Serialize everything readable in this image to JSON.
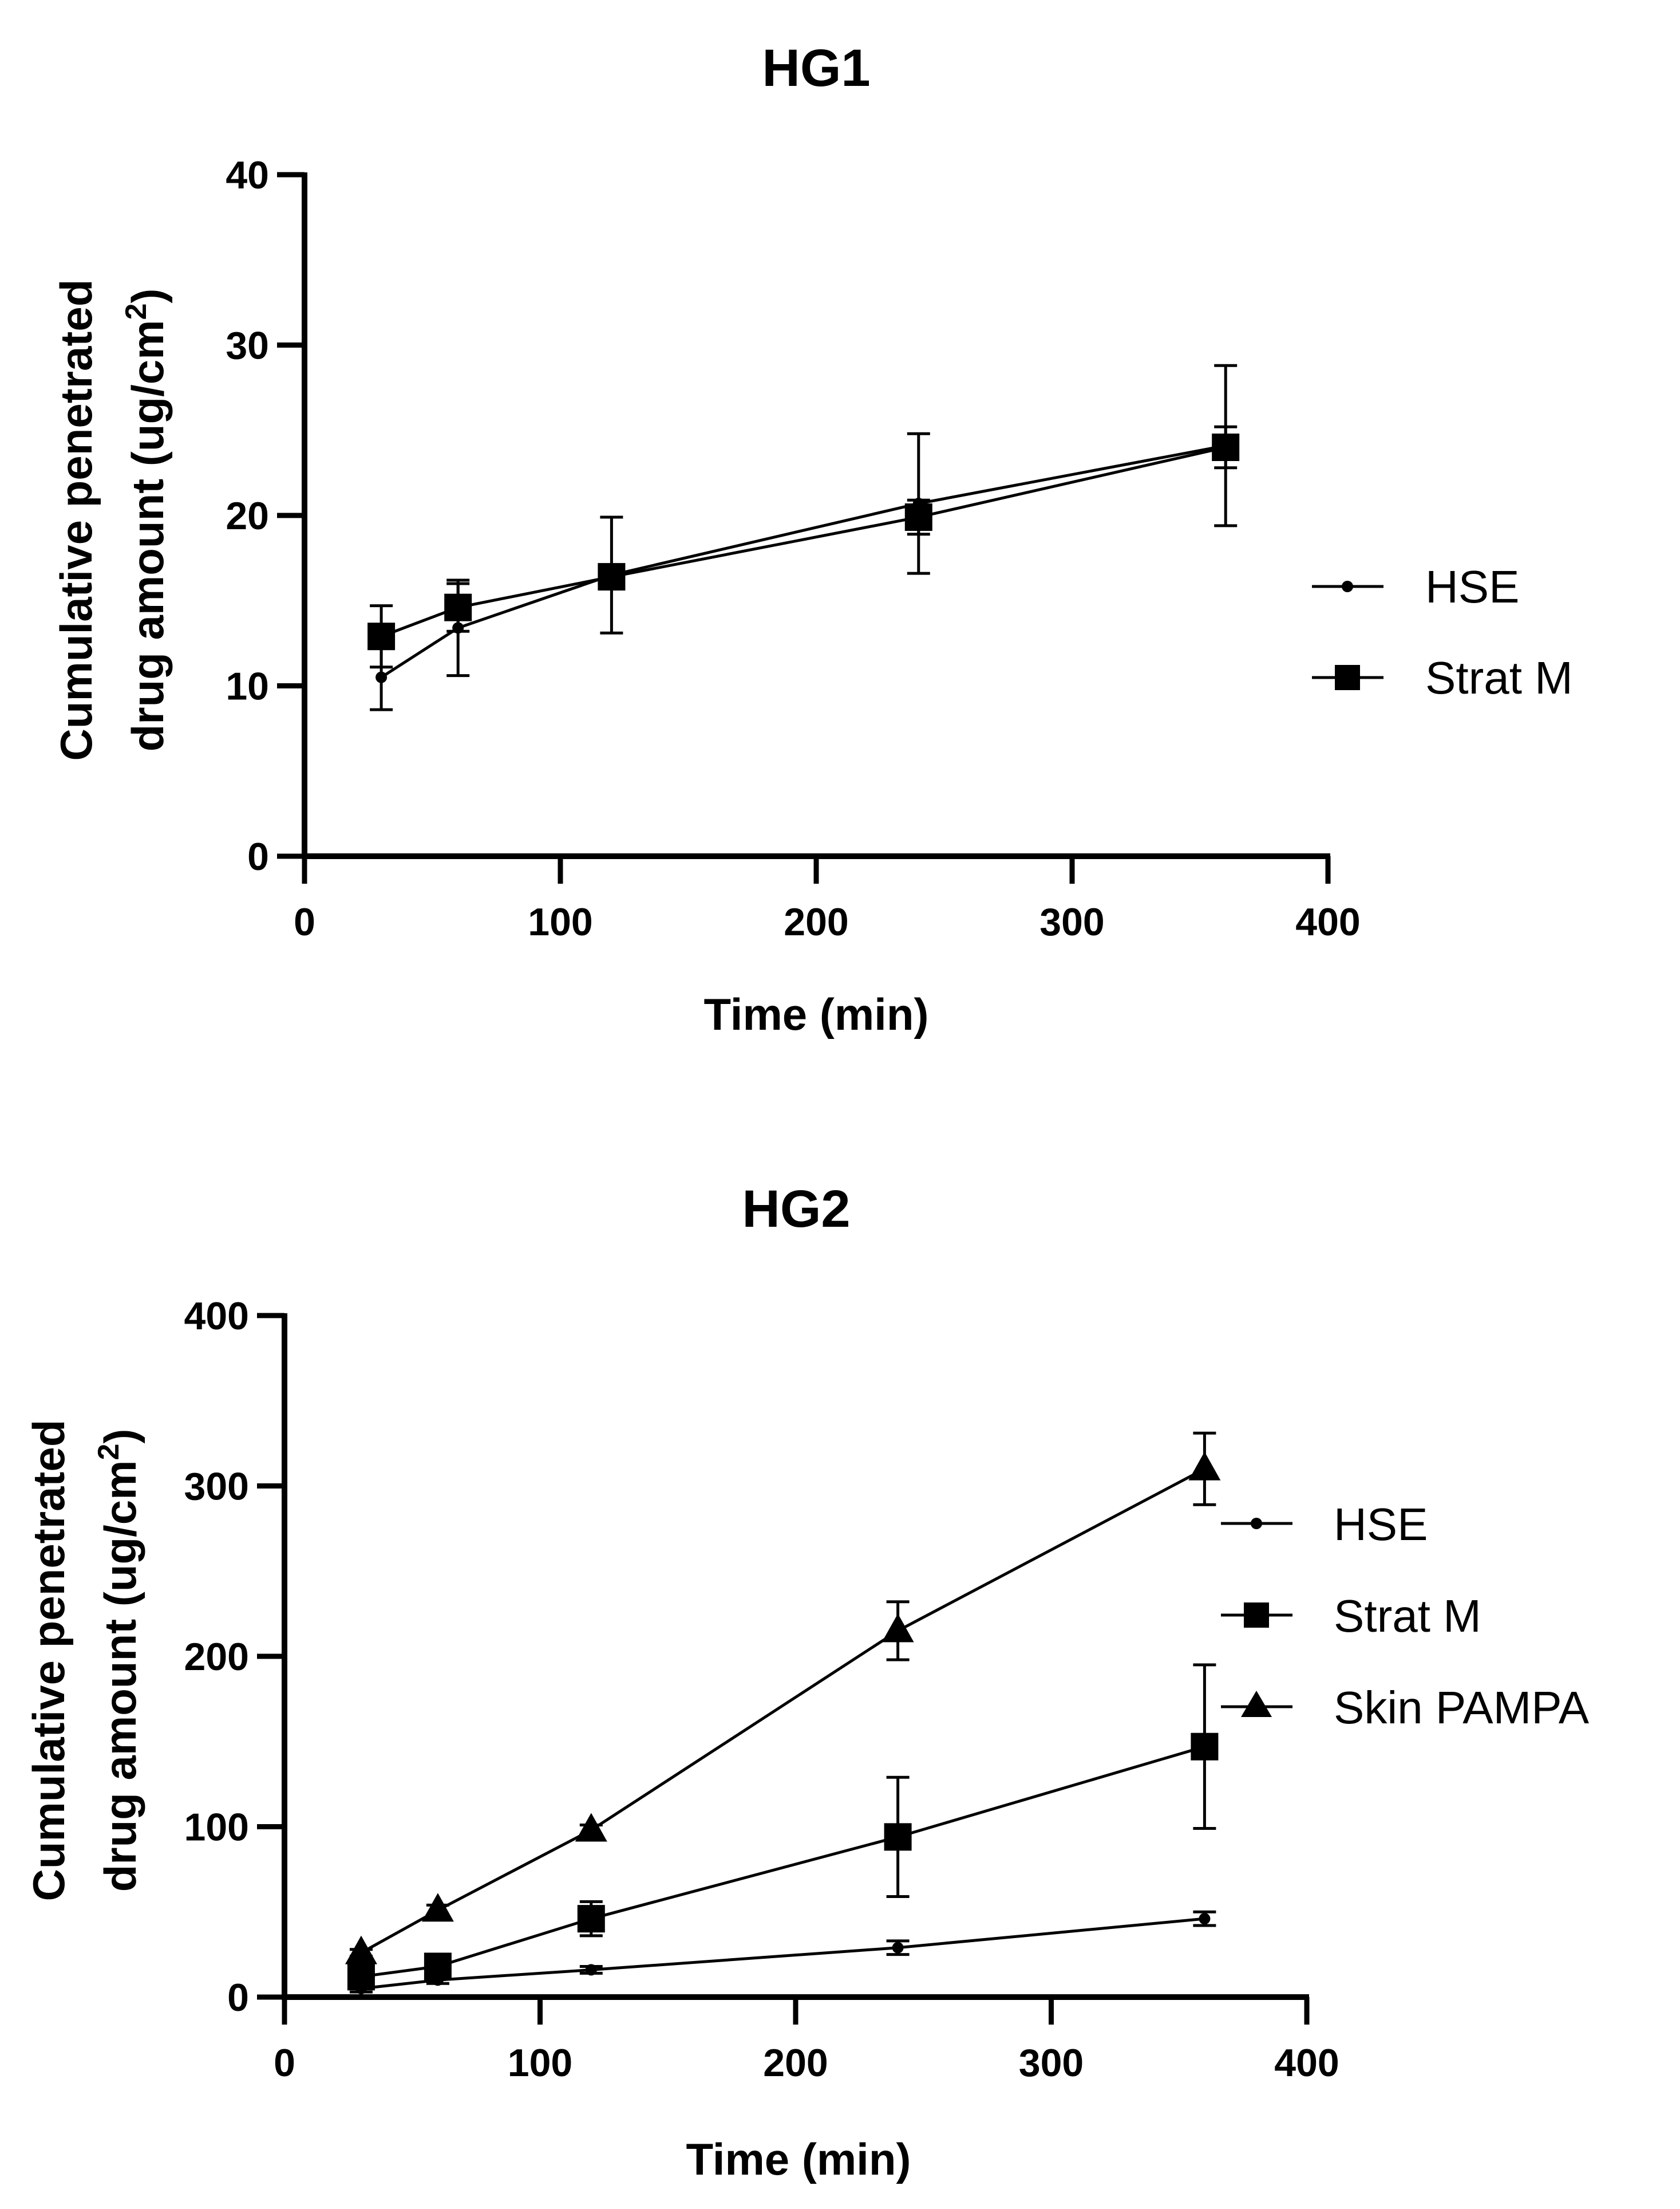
{
  "chart_data": [
    {
      "type": "line",
      "title": "HG1",
      "xlabel": "Time (min)",
      "ylabel_line1": "Cumulative penetrated",
      "ylabel_line2": "drug amount (ug/cm",
      "ylabel_sup": "2",
      "ylabel_close": ")",
      "xlim": [
        0,
        400
      ],
      "ylim": [
        0,
        40
      ],
      "xticks": [
        0,
        100,
        200,
        300,
        400
      ],
      "yticks": [
        0,
        10,
        20,
        30,
        40
      ],
      "xtick_labels": [
        "0",
        "100",
        "200",
        "300",
        "400"
      ],
      "ytick_labels": [
        "0",
        "10",
        "20",
        "30",
        "40"
      ],
      "legend_position": "right",
      "series": [
        {
          "name": "HSE",
          "marker": "circle",
          "x": [
            30,
            60,
            120,
            240,
            360
          ],
          "y": [
            10.5,
            13.4,
            16.5,
            20.7,
            24.1
          ],
          "err": [
            1.9,
            2.8,
            3.4,
            4.1,
            4.7
          ]
        },
        {
          "name": "Strat M",
          "marker": "square",
          "x": [
            30,
            60,
            120,
            240,
            360
          ],
          "y": [
            12.9,
            14.6,
            16.4,
            19.9,
            24.0
          ],
          "err": [
            1.8,
            1.4,
            0.6,
            1.0,
            1.2
          ]
        }
      ]
    },
    {
      "type": "line",
      "title": "HG2",
      "xlabel": "Time (min)",
      "ylabel_line1": "Cumulative penetrated",
      "ylabel_line2": "drug amount (ug/cm",
      "ylabel_sup": "2",
      "ylabel_close": ")",
      "xlim": [
        0,
        400
      ],
      "ylim": [
        0,
        400
      ],
      "xticks": [
        0,
        100,
        200,
        300,
        400
      ],
      "yticks": [
        0,
        100,
        200,
        300,
        400
      ],
      "xtick_labels": [
        "0",
        "100",
        "200",
        "300",
        "400"
      ],
      "ytick_labels": [
        "0",
        "100",
        "200",
        "300",
        "400"
      ],
      "legend_position": "right",
      "series": [
        {
          "name": "HSE",
          "marker": "circle",
          "x": [
            30,
            60,
            120,
            240,
            360
          ],
          "y": [
            5,
            10,
            16,
            29,
            46
          ],
          "err": [
            2,
            2,
            2,
            4,
            4
          ]
        },
        {
          "name": "Strat M",
          "marker": "square",
          "x": [
            30,
            60,
            120,
            240,
            360
          ],
          "y": [
            12,
            18,
            46,
            94,
            147
          ],
          "err": [
            4,
            6,
            10,
            35,
            48
          ]
        },
        {
          "name": "Skin PAMPA",
          "marker": "triangle",
          "x": [
            30,
            60,
            120,
            240,
            360
          ],
          "y": [
            26,
            51,
            98,
            215,
            310
          ],
          "err": [
            2,
            3,
            3,
            17,
            21
          ]
        }
      ]
    }
  ]
}
